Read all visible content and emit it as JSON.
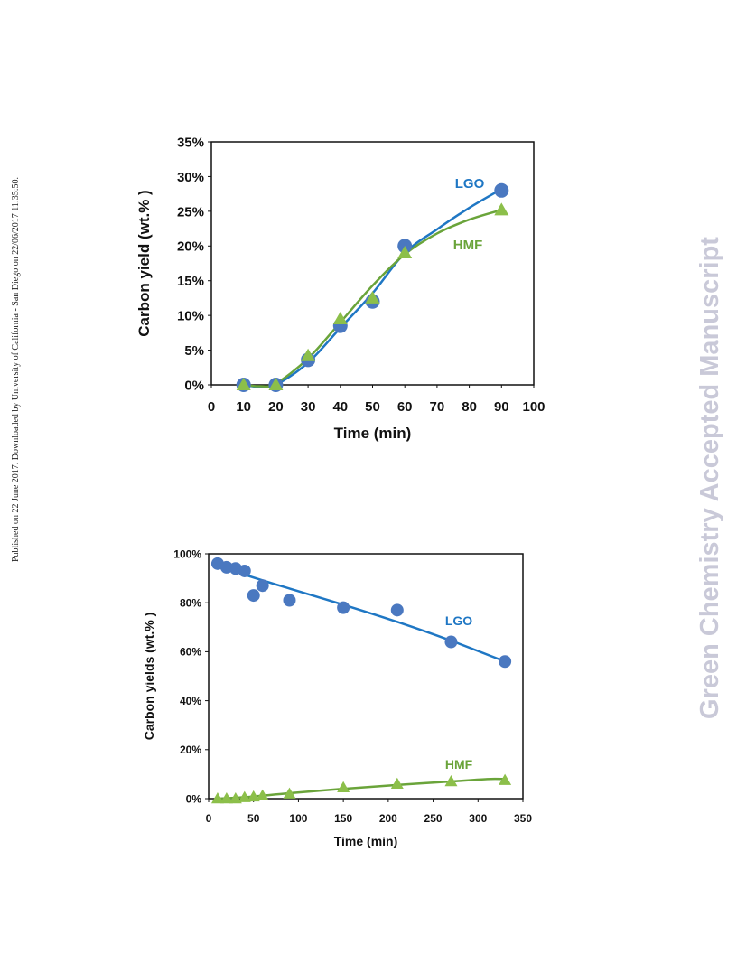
{
  "side_note": "Published on 22 June 2017. Downloaded by University of California - San Diego on 22/06/2017 11:35:50.",
  "watermark": "Green Chemistry Accepted Manuscript",
  "colors": {
    "lgo": "#1f77c4",
    "lgo_marker": "#4a78c0",
    "hmf": "#6aa43a",
    "hmf_marker": "#8cbf4a"
  },
  "chart_data": [
    {
      "type": "scatter",
      "title": "",
      "xlabel": "Time (min)",
      "ylabel": "Carbon yield (wt.% )",
      "xlim": [
        0,
        100
      ],
      "ylim": [
        0,
        35
      ],
      "x_ticks": [
        "0",
        "10",
        "20",
        "30",
        "40",
        "50",
        "60",
        "70",
        "80",
        "90",
        "100"
      ],
      "y_ticks": [
        "0%",
        "5%",
        "10%",
        "15%",
        "20%",
        "25%",
        "30%",
        "35%"
      ],
      "grid": false,
      "series": [
        {
          "name": "LGO",
          "marker": "circle",
          "x": [
            10,
            20,
            30,
            40,
            50,
            60,
            90
          ],
          "y": [
            0,
            0,
            3.6,
            8.5,
            12,
            20,
            28
          ],
          "fit": [
            [
              10,
              0
            ],
            [
              15,
              -0.3
            ],
            [
              20,
              0
            ],
            [
              30,
              3.2
            ],
            [
              40,
              8.2
            ],
            [
              50,
              13.2
            ],
            [
              60,
              19
            ],
            [
              70,
              22.4
            ],
            [
              80,
              25.5
            ],
            [
              90,
              28.2
            ]
          ]
        },
        {
          "name": "HMF",
          "marker": "triangle",
          "x": [
            10,
            20,
            30,
            40,
            50,
            60,
            90
          ],
          "y": [
            0,
            0,
            4.2,
            9.5,
            12.5,
            19,
            25.2
          ],
          "fit": [
            [
              10,
              0
            ],
            [
              15,
              -0.2
            ],
            [
              20,
              0.2
            ],
            [
              30,
              3.8
            ],
            [
              40,
              9
            ],
            [
              50,
              14.3
            ],
            [
              60,
              18.8
            ],
            [
              70,
              21.8
            ],
            [
              80,
              23.8
            ],
            [
              90,
              25.2
            ]
          ]
        }
      ]
    },
    {
      "type": "scatter",
      "title": "",
      "xlabel": "Time (min)",
      "ylabel": "Carbon yields (wt.% )",
      "xlim": [
        0,
        350
      ],
      "ylim": [
        0,
        100
      ],
      "x_ticks": [
        "0",
        "50",
        "100",
        "150",
        "200",
        "250",
        "300",
        "350"
      ],
      "y_ticks": [
        "0%",
        "20%",
        "40%",
        "60%",
        "80%",
        "100%"
      ],
      "grid": false,
      "series": [
        {
          "name": "LGO",
          "marker": "circle",
          "x": [
            10,
            20,
            30,
            40,
            50,
            60,
            90,
            150,
            210,
            270,
            330
          ],
          "y": [
            96,
            94.5,
            94,
            93,
            83,
            87,
            81,
            78,
            77,
            64,
            56
          ],
          "fit": [
            [
              10,
              95.5
            ],
            [
              40,
              91.5
            ],
            [
              90,
              85.8
            ],
            [
              150,
              79.2
            ],
            [
              210,
              72.2
            ],
            [
              270,
              64.5
            ],
            [
              330,
              56
            ]
          ]
        },
        {
          "name": "HMF",
          "marker": "triangle",
          "x": [
            10,
            20,
            30,
            40,
            50,
            60,
            90,
            150,
            210,
            270,
            330
          ],
          "y": [
            0,
            0,
            0,
            0.5,
            0.8,
            1.2,
            2,
            4.5,
            6,
            7,
            7.5
          ],
          "fit": [
            [
              10,
              0
            ],
            [
              40,
              0.6
            ],
            [
              90,
              2.2
            ],
            [
              150,
              4
            ],
            [
              210,
              5.6
            ],
            [
              270,
              7
            ],
            [
              310,
              8
            ],
            [
              330,
              8
            ]
          ]
        }
      ]
    }
  ]
}
